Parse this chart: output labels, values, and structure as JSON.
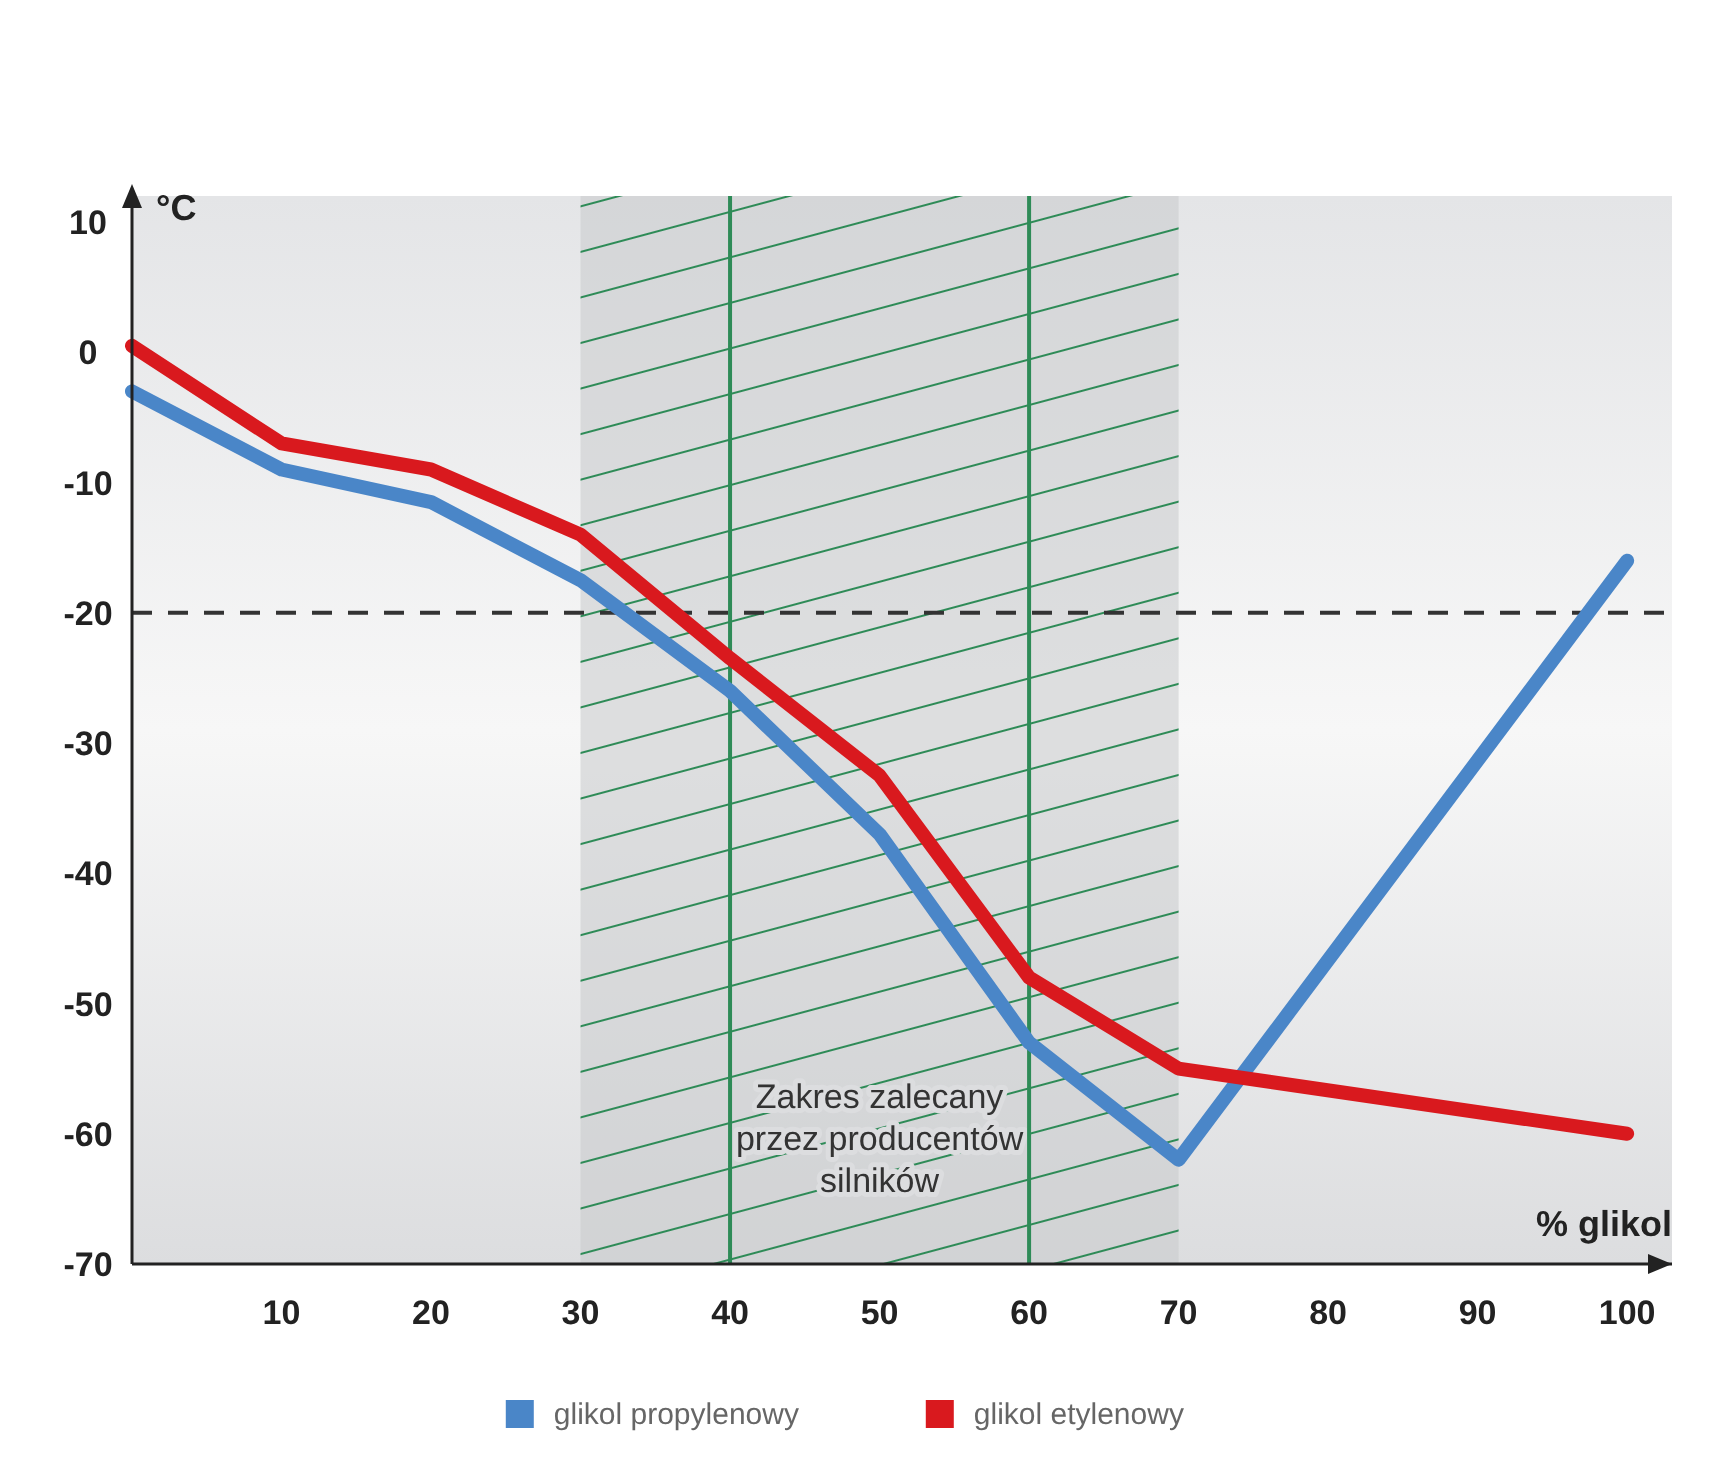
{
  "chart_data": {
    "type": "line",
    "xlabel": "% glikol",
    "ylabel": "°C",
    "x": [
      0,
      10,
      20,
      30,
      40,
      50,
      60,
      70,
      100
    ],
    "series": [
      {
        "name": "glikol propylenowy",
        "color": "#4a86c8",
        "values": [
          -3,
          -9,
          -11.5,
          -17.5,
          -26,
          -37,
          -53,
          -62,
          -16
        ]
      },
      {
        "name": "glikol etylenowy",
        "color": "#d9191e",
        "values": [
          0.5,
          -7,
          -9,
          -14,
          -23.5,
          -32.5,
          -48,
          -55,
          -60
        ]
      }
    ],
    "xlim": [
      0,
      103
    ],
    "xticks": [
      10,
      20,
      30,
      40,
      50,
      60,
      70,
      80,
      90,
      100
    ],
    "ylim": [
      -70,
      12
    ],
    "yticks": [
      -70,
      -60,
      -50,
      -40,
      -30,
      -20,
      -10,
      0,
      10
    ],
    "bands": [
      {
        "axis": "x",
        "from": 30,
        "to": 70,
        "label": "Zakres zalecany przez producentów silników",
        "color": "#c8cacc"
      }
    ],
    "ref_lines": [
      {
        "axis": "y",
        "value": -20,
        "color": "#333333",
        "line_style": "dashed"
      },
      {
        "axis": "x",
        "value": 40,
        "color": "#2e8b57",
        "line_style": "solid"
      },
      {
        "axis": "x",
        "value": 60,
        "color": "#2e8b57",
        "line_style": "solid"
      }
    ],
    "grid": false,
    "legend": "bottom",
    "line_style": "solid",
    "marker": "none"
  }
}
